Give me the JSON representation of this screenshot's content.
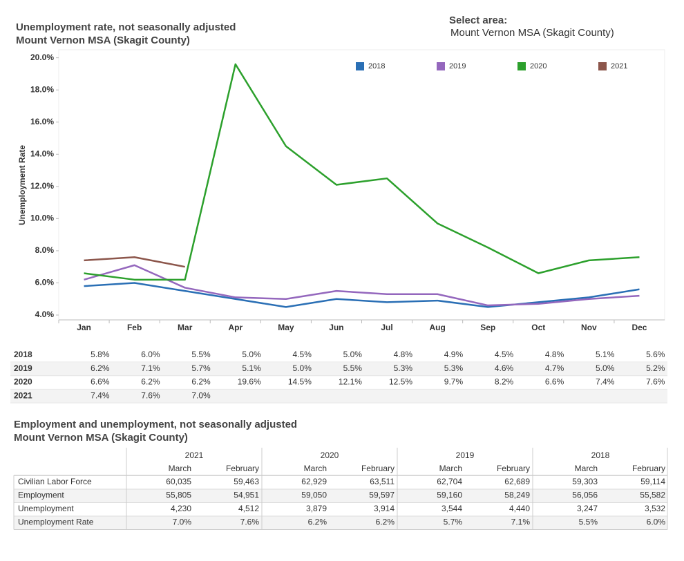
{
  "select_label": "Select area:",
  "select_value": "Mount Vernon MSA (Skagit County)",
  "chart_data": {
    "type": "line",
    "title": "Unemployment rate, not seasonally adjusted",
    "subtitle": "Mount Vernon MSA (Skagit County)",
    "y_label": "Unemployment Rate",
    "categories": [
      "Jan",
      "Feb",
      "Mar",
      "Apr",
      "May",
      "Jun",
      "Jul",
      "Aug",
      "Sep",
      "Oct",
      "Nov",
      "Dec"
    ],
    "ylim": [
      3.7,
      20.5
    ],
    "yticks": [
      {
        "value": 4,
        "label": "4.0%"
      },
      {
        "value": 6,
        "label": "6.0%"
      },
      {
        "value": 8,
        "label": "8.0%"
      },
      {
        "value": 10,
        "label": "10.0%"
      },
      {
        "value": 12,
        "label": "12.0%"
      },
      {
        "value": 14,
        "label": "14.0%"
      },
      {
        "value": 16,
        "label": "16.0%"
      },
      {
        "value": 18,
        "label": "18.0%"
      },
      {
        "value": 20,
        "label": "20.0%"
      }
    ],
    "grid": false,
    "legend": "top-right",
    "series": [
      {
        "name": "2018",
        "color": "#2a6fb5",
        "values": [
          5.8,
          6.0,
          5.5,
          5.0,
          4.5,
          5.0,
          4.8,
          4.9,
          4.5,
          4.8,
          5.1,
          5.6
        ],
        "value_labels": [
          "5.8%",
          "6.0%",
          "5.5%",
          "5.0%",
          "4.5%",
          "5.0%",
          "4.8%",
          "4.9%",
          "4.5%",
          "4.8%",
          "5.1%",
          "5.6%"
        ]
      },
      {
        "name": "2019",
        "color": "#9467bd",
        "values": [
          6.2,
          7.1,
          5.7,
          5.1,
          5.0,
          5.5,
          5.3,
          5.3,
          4.6,
          4.7,
          5.0,
          5.2
        ],
        "value_labels": [
          "6.2%",
          "7.1%",
          "5.7%",
          "5.1%",
          "5.0%",
          "5.5%",
          "5.3%",
          "5.3%",
          "4.6%",
          "4.7%",
          "5.0%",
          "5.2%"
        ]
      },
      {
        "name": "2020",
        "color": "#2ca02c",
        "values": [
          6.6,
          6.2,
          6.2,
          19.6,
          14.5,
          12.1,
          12.5,
          9.7,
          8.2,
          6.6,
          7.4,
          7.6
        ],
        "value_labels": [
          "6.6%",
          "6.2%",
          "6.2%",
          "19.6%",
          "14.5%",
          "12.1%",
          "12.5%",
          "9.7%",
          "8.2%",
          "6.6%",
          "7.4%",
          "7.6%"
        ]
      },
      {
        "name": "2021",
        "color": "#8c564b",
        "values": [
          7.4,
          7.6,
          7.0,
          null,
          null,
          null,
          null,
          null,
          null,
          null,
          null,
          null
        ],
        "value_labels": [
          "7.4%",
          "7.6%",
          "7.0%",
          null,
          null,
          null,
          null,
          null,
          null,
          null,
          null,
          null
        ]
      }
    ]
  },
  "employment_table": {
    "title": "Employment and unemployment, not seasonally adjusted",
    "subtitle": "Mount Vernon MSA (Skagit County)",
    "groups": [
      {
        "year": "2021",
        "months": [
          "March",
          "February"
        ]
      },
      {
        "year": "2020",
        "months": [
          "March",
          "February"
        ]
      },
      {
        "year": "2019",
        "months": [
          "March",
          "February"
        ]
      },
      {
        "year": "2018",
        "months": [
          "March",
          "February"
        ]
      }
    ],
    "rows": [
      {
        "label": "Civilian Labor Force",
        "values": [
          "60,035",
          "59,463",
          "62,929",
          "63,511",
          "62,704",
          "62,689",
          "59,303",
          "59,114"
        ]
      },
      {
        "label": "Employment",
        "values": [
          "55,805",
          "54,951",
          "59,050",
          "59,597",
          "59,160",
          "58,249",
          "56,056",
          "55,582"
        ]
      },
      {
        "label": "Unemployment",
        "values": [
          "4,230",
          "4,512",
          "3,879",
          "3,914",
          "3,544",
          "4,440",
          "3,247",
          "3,532"
        ]
      },
      {
        "label": "Unemployment Rate",
        "values": [
          "7.0%",
          "7.6%",
          "6.2%",
          "6.2%",
          "5.7%",
          "7.1%",
          "5.5%",
          "6.0%"
        ]
      }
    ]
  }
}
